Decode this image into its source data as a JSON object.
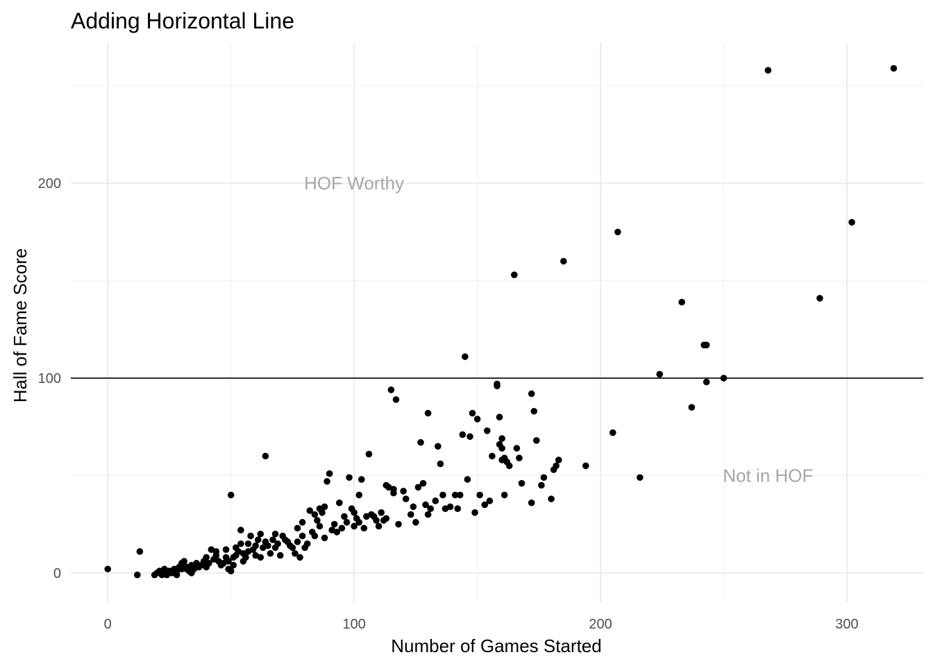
{
  "chart_data": {
    "type": "scatter",
    "title": "Adding Horizontal Line",
    "xlabel": "Number of Games Started",
    "ylabel": "Hall of Fame Score",
    "xlim": [
      -15,
      331
    ],
    "ylim": [
      -15,
      272
    ],
    "x_ticks": [
      0,
      100,
      200,
      300
    ],
    "x_tick_labels": [
      "0",
      "100",
      "200",
      "300"
    ],
    "y_ticks": [
      0,
      100,
      200
    ],
    "y_tick_labels": [
      "0",
      "100",
      "200"
    ],
    "x_minor_ticks": [
      50,
      150,
      250
    ],
    "y_minor_ticks": [
      50,
      150,
      250
    ],
    "grid": true,
    "hline": 100,
    "annotations": [
      {
        "text": "HOF Worthy",
        "x": 100,
        "y": 200,
        "color": "#a6a6a6"
      },
      {
        "text": "Not in HOF",
        "x": 268,
        "y": 50,
        "color": "#a6a6a6"
      }
    ],
    "point_color": "#000000",
    "points": [
      [
        0,
        2
      ],
      [
        12,
        -1
      ],
      [
        13,
        11
      ],
      [
        19,
        -1
      ],
      [
        20,
        0
      ],
      [
        21,
        1
      ],
      [
        22,
        -1
      ],
      [
        23,
        2
      ],
      [
        23,
        0
      ],
      [
        24,
        -1
      ],
      [
        25,
        1
      ],
      [
        26,
        0
      ],
      [
        27,
        2
      ],
      [
        28,
        1
      ],
      [
        28,
        -1
      ],
      [
        29,
        3
      ],
      [
        30,
        2
      ],
      [
        30,
        5
      ],
      [
        31,
        4
      ],
      [
        31,
        6
      ],
      [
        32,
        2
      ],
      [
        33,
        1
      ],
      [
        33,
        3
      ],
      [
        34,
        0
      ],
      [
        34,
        4
      ],
      [
        35,
        2
      ],
      [
        36,
        5
      ],
      [
        37,
        3
      ],
      [
        38,
        4
      ],
      [
        39,
        6
      ],
      [
        40,
        8
      ],
      [
        40,
        3
      ],
      [
        41,
        5
      ],
      [
        42,
        12
      ],
      [
        43,
        7
      ],
      [
        44,
        11
      ],
      [
        44,
        9
      ],
      [
        45,
        6
      ],
      [
        46,
        4
      ],
      [
        47,
        5
      ],
      [
        48,
        12
      ],
      [
        48,
        8
      ],
      [
        49,
        2
      ],
      [
        49,
        6
      ],
      [
        50,
        40
      ],
      [
        50,
        1
      ],
      [
        51,
        4
      ],
      [
        51,
        8
      ],
      [
        52,
        9
      ],
      [
        52,
        13
      ],
      [
        53,
        11
      ],
      [
        54,
        22
      ],
      [
        54,
        15
      ],
      [
        55,
        10
      ],
      [
        55,
        6
      ],
      [
        56,
        8
      ],
      [
        57,
        11
      ],
      [
        57,
        15
      ],
      [
        58,
        19
      ],
      [
        59,
        12
      ],
      [
        60,
        14
      ],
      [
        60,
        9
      ],
      [
        61,
        17
      ],
      [
        62,
        20
      ],
      [
        62,
        8
      ],
      [
        63,
        13
      ],
      [
        64,
        16
      ],
      [
        64,
        60
      ],
      [
        65,
        14
      ],
      [
        66,
        10
      ],
      [
        67,
        17
      ],
      [
        68,
        20
      ],
      [
        68,
        13
      ],
      [
        69,
        15
      ],
      [
        70,
        9
      ],
      [
        71,
        19
      ],
      [
        72,
        17
      ],
      [
        73,
        16
      ],
      [
        74,
        14
      ],
      [
        75,
        13
      ],
      [
        76,
        10
      ],
      [
        77,
        23
      ],
      [
        77,
        16
      ],
      [
        78,
        8
      ],
      [
        79,
        19
      ],
      [
        79,
        26
      ],
      [
        80,
        13
      ],
      [
        81,
        15
      ],
      [
        82,
        32
      ],
      [
        83,
        21
      ],
      [
        84,
        30
      ],
      [
        84,
        19
      ],
      [
        85,
        27
      ],
      [
        86,
        24
      ],
      [
        86,
        33
      ],
      [
        87,
        31
      ],
      [
        88,
        34
      ],
      [
        88,
        18
      ],
      [
        89,
        47
      ],
      [
        90,
        51
      ],
      [
        91,
        22
      ],
      [
        92,
        25
      ],
      [
        93,
        21
      ],
      [
        94,
        36
      ],
      [
        95,
        23
      ],
      [
        96,
        29
      ],
      [
        97,
        26
      ],
      [
        98,
        49
      ],
      [
        99,
        33
      ],
      [
        100,
        31
      ],
      [
        100,
        24
      ],
      [
        101,
        28
      ],
      [
        102,
        40
      ],
      [
        102,
        26
      ],
      [
        103,
        48
      ],
      [
        104,
        23
      ],
      [
        105,
        29
      ],
      [
        106,
        61
      ],
      [
        107,
        30
      ],
      [
        108,
        29
      ],
      [
        109,
        27
      ],
      [
        110,
        24
      ],
      [
        111,
        31
      ],
      [
        112,
        27
      ],
      [
        113,
        45
      ],
      [
        113,
        28
      ],
      [
        114,
        44
      ],
      [
        115,
        94
      ],
      [
        116,
        41
      ],
      [
        116,
        43
      ],
      [
        117,
        89
      ],
      [
        118,
        25
      ],
      [
        120,
        42
      ],
      [
        121,
        38
      ],
      [
        123,
        30
      ],
      [
        124,
        34
      ],
      [
        125,
        26
      ],
      [
        126,
        44
      ],
      [
        127,
        67
      ],
      [
        128,
        46
      ],
      [
        129,
        35
      ],
      [
        130,
        30
      ],
      [
        130,
        82
      ],
      [
        131,
        33
      ],
      [
        133,
        37
      ],
      [
        134,
        65
      ],
      [
        135,
        56
      ],
      [
        136,
        40
      ],
      [
        137,
        33
      ],
      [
        139,
        34
      ],
      [
        141,
        40
      ],
      [
        142,
        33
      ],
      [
        143,
        40
      ],
      [
        144,
        71
      ],
      [
        145,
        111
      ],
      [
        146,
        48
      ],
      [
        147,
        70
      ],
      [
        148,
        82
      ],
      [
        149,
        31
      ],
      [
        150,
        79
      ],
      [
        151,
        40
      ],
      [
        153,
        35
      ],
      [
        154,
        73
      ],
      [
        155,
        37
      ],
      [
        156,
        60
      ],
      [
        158,
        97
      ],
      [
        158,
        96
      ],
      [
        159,
        66
      ],
      [
        159,
        80
      ],
      [
        160,
        58
      ],
      [
        160,
        64
      ],
      [
        160,
        69
      ],
      [
        161,
        40
      ],
      [
        161,
        59
      ],
      [
        162,
        57
      ],
      [
        163,
        55
      ],
      [
        165,
        153
      ],
      [
        166,
        64
      ],
      [
        167,
        59
      ],
      [
        168,
        46
      ],
      [
        172,
        92
      ],
      [
        172,
        36
      ],
      [
        173,
        83
      ],
      [
        174,
        68
      ],
      [
        176,
        45
      ],
      [
        177,
        49
      ],
      [
        180,
        38
      ],
      [
        181,
        53
      ],
      [
        182,
        55
      ],
      [
        183,
        58
      ],
      [
        185,
        160
      ],
      [
        194,
        55
      ],
      [
        205,
        72
      ],
      [
        207,
        175
      ],
      [
        216,
        49
      ],
      [
        224,
        102
      ],
      [
        233,
        139
      ],
      [
        237,
        85
      ],
      [
        242,
        117
      ],
      [
        243,
        117
      ],
      [
        243,
        98
      ],
      [
        250,
        100
      ],
      [
        268,
        258
      ],
      [
        289,
        141
      ],
      [
        302,
        180
      ],
      [
        319,
        259
      ]
    ]
  }
}
